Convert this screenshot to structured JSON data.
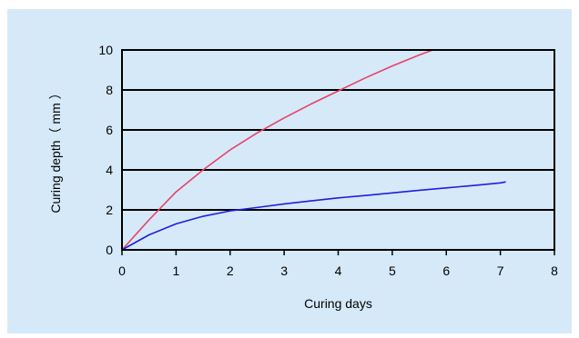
{
  "chart_data": {
    "type": "line",
    "xlabel": "Curing days",
    "ylabel": "Curing depth（ mm ）",
    "xlim": [
      0,
      8
    ],
    "ylim": [
      0,
      10
    ],
    "xticks": [
      "0",
      "1",
      "2",
      "3",
      "4",
      "5",
      "6",
      "7",
      "8"
    ],
    "yticks": [
      "0",
      "2",
      "4",
      "6",
      "8",
      "10"
    ],
    "grid": "horizontal",
    "legend": "none",
    "series": [
      {
        "color": "#e8416a",
        "x": [
          0,
          0.5,
          1,
          1.5,
          2,
          2.5,
          3,
          3.5,
          4,
          4.5,
          5,
          5.5,
          5.75
        ],
        "y": [
          0,
          1.5,
          2.9,
          4.0,
          5.0,
          5.85,
          6.6,
          7.3,
          7.95,
          8.6,
          9.2,
          9.75,
          10.0
        ]
      },
      {
        "color": "#1f1fe0",
        "x": [
          0,
          0.5,
          1,
          1.5,
          2,
          2.5,
          3,
          3.5,
          4,
          4.5,
          5,
          5.5,
          6,
          6.5,
          7,
          7.1
        ],
        "y": [
          0,
          0.75,
          1.3,
          1.68,
          1.95,
          2.12,
          2.3,
          2.45,
          2.6,
          2.72,
          2.85,
          2.98,
          3.1,
          3.22,
          3.35,
          3.4
        ]
      }
    ]
  }
}
